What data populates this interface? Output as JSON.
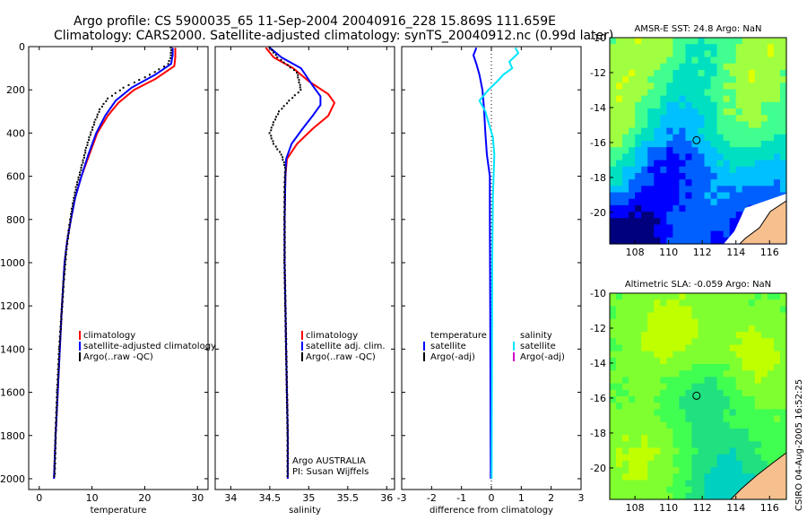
{
  "header": {
    "line1": "Argo profile: CS 5900035_65 11-Sep-2004 20040916_228 15.869S 111.659E",
    "line2": "Climatology: CARS2000. Satellite-adjusted climatology: synTS_20040912.nc (0.99d later)"
  },
  "stamp": "CSIRO 04-Aug-2005 16:52:25",
  "colors": {
    "climatology": "#ff0000",
    "satellite": "#0000ff",
    "argo": "#000000",
    "salinity_satellite": "#00e5ff",
    "salinity_argo": "#cc00cc",
    "land": "#f6c08e",
    "marker": "#000000"
  },
  "chart_data": [
    {
      "type": "line",
      "id": "temperature-profile",
      "xlabel": "temperature",
      "ylabel": "",
      "xlim": [
        -2,
        32
      ],
      "ylim": [
        2050,
        0
      ],
      "xticks": [
        0,
        10,
        20,
        30
      ],
      "yticks": [
        0,
        200,
        400,
        600,
        800,
        1000,
        1200,
        1400,
        1600,
        1800,
        2000
      ],
      "legend": {
        "position": "center-right",
        "entries": [
          "climatology",
          "satellite-adjusted climatology",
          "Argo(..raw -QC)"
        ]
      },
      "series": [
        {
          "name": "climatology",
          "style": "line",
          "color": "#ff0000",
          "points": [
            [
              25.8,
              5
            ],
            [
              25.8,
              50
            ],
            [
              25.6,
              90
            ],
            [
              22,
              150
            ],
            [
              18,
              200
            ],
            [
              15,
              260
            ],
            [
              13,
              320
            ],
            [
              11,
              400
            ],
            [
              9.5,
              500
            ],
            [
              8,
              600
            ],
            [
              6.8,
              700
            ],
            [
              6,
              800
            ],
            [
              5.3,
              900
            ],
            [
              4.8,
              1000
            ],
            [
              4.3,
              1200
            ],
            [
              3.9,
              1400
            ],
            [
              3.5,
              1600
            ],
            [
              3.1,
              1800
            ],
            [
              2.8,
              2000
            ]
          ]
        },
        {
          "name": "satellite-adjusted climatology",
          "style": "line",
          "color": "#0000ff",
          "points": [
            [
              25.3,
              5
            ],
            [
              25.3,
              40
            ],
            [
              25,
              80
            ],
            [
              22,
              130
            ],
            [
              17.5,
              190
            ],
            [
              14.5,
              250
            ],
            [
              12.5,
              320
            ],
            [
              10.8,
              400
            ],
            [
              9.3,
              500
            ],
            [
              8,
              600
            ],
            [
              6.8,
              700
            ],
            [
              6,
              800
            ],
            [
              5.3,
              900
            ],
            [
              4.8,
              1000
            ],
            [
              4.3,
              1200
            ],
            [
              3.9,
              1400
            ],
            [
              3.5,
              1600
            ],
            [
              3.1,
              1800
            ],
            [
              2.8,
              2000
            ]
          ]
        },
        {
          "name": "Argo(..raw -QC)",
          "style": "dots",
          "color": "#000000",
          "points": [
            [
              25,
              5
            ],
            [
              25,
              40
            ],
            [
              24.5,
              80
            ],
            [
              21,
              130
            ],
            [
              16,
              190
            ],
            [
              13,
              240
            ],
            [
              11.5,
              290
            ],
            [
              10.5,
              350
            ],
            [
              9.5,
              420
            ],
            [
              8.8,
              480
            ],
            [
              8,
              560
            ],
            [
              7,
              650
            ],
            [
              6.2,
              750
            ],
            [
              5.6,
              850
            ],
            [
              5.1,
              950
            ],
            [
              4.6,
              1100
            ],
            [
              4.2,
              1250
            ],
            [
              3.8,
              1400
            ],
            [
              3.4,
              1600
            ],
            [
              3.1,
              1800
            ],
            [
              2.9,
              2000
            ]
          ]
        }
      ]
    },
    {
      "type": "line",
      "id": "salinity-profile",
      "xlabel": "salinity",
      "ylabel": "",
      "xlim": [
        33.8,
        36.1
      ],
      "ylim": [
        2050,
        0
      ],
      "xticks": [
        34,
        34.5,
        35,
        35.5,
        36
      ],
      "yticks": [
        0,
        200,
        400,
        600,
        800,
        1000,
        1200,
        1400,
        1600,
        1800,
        2000
      ],
      "legend": {
        "position": "center-right",
        "entries": [
          "climatology",
          "satellite adj. clim.",
          "Argo(..raw -QC)"
        ]
      },
      "annotation": [
        "Argo AUSTRALIA",
        "PI: Susan Wijffels"
      ],
      "series": [
        {
          "name": "climatology",
          "style": "line",
          "color": "#ff0000",
          "points": [
            [
              34.45,
              5
            ],
            [
              34.55,
              50
            ],
            [
              34.8,
              100
            ],
            [
              35.0,
              160
            ],
            [
              35.25,
              220
            ],
            [
              35.33,
              260
            ],
            [
              35.25,
              320
            ],
            [
              35.05,
              380
            ],
            [
              34.85,
              450
            ],
            [
              34.72,
              520
            ],
            [
              34.7,
              600
            ],
            [
              34.69,
              800
            ],
            [
              34.69,
              1000
            ],
            [
              34.7,
              1200
            ],
            [
              34.71,
              1400
            ],
            [
              34.72,
              1600
            ],
            [
              34.73,
              1800
            ],
            [
              34.73,
              2000
            ]
          ]
        },
        {
          "name": "satellite adj. clim.",
          "style": "line",
          "color": "#0000ff",
          "points": [
            [
              34.5,
              5
            ],
            [
              34.65,
              50
            ],
            [
              34.9,
              100
            ],
            [
              35.05,
              180
            ],
            [
              35.15,
              230
            ],
            [
              35.15,
              270
            ],
            [
              35.05,
              320
            ],
            [
              34.92,
              380
            ],
            [
              34.78,
              450
            ],
            [
              34.71,
              520
            ],
            [
              34.7,
              600
            ],
            [
              34.69,
              800
            ],
            [
              34.69,
              1000
            ],
            [
              34.7,
              1200
            ],
            [
              34.71,
              1400
            ],
            [
              34.72,
              1600
            ],
            [
              34.73,
              1800
            ],
            [
              34.73,
              2000
            ]
          ]
        },
        {
          "name": "Argo(..raw -QC)",
          "style": "dots",
          "color": "#000000",
          "points": [
            [
              34.5,
              5
            ],
            [
              34.6,
              50
            ],
            [
              34.85,
              120
            ],
            [
              34.9,
              200
            ],
            [
              34.75,
              250
            ],
            [
              34.62,
              300
            ],
            [
              34.55,
              350
            ],
            [
              34.5,
              400
            ],
            [
              34.55,
              450
            ],
            [
              34.65,
              500
            ],
            [
              34.7,
              560
            ],
            [
              34.69,
              650
            ],
            [
              34.69,
              800
            ],
            [
              34.69,
              1000
            ],
            [
              34.7,
              1200
            ],
            [
              34.71,
              1400
            ],
            [
              34.72,
              1600
            ],
            [
              34.73,
              1800
            ],
            [
              34.73,
              2000
            ]
          ]
        }
      ]
    },
    {
      "type": "line",
      "id": "difference-profile",
      "xlabel": "difference from climatology",
      "ylabel": "",
      "xlim": [
        -3,
        3
      ],
      "ylim": [
        2050,
        0
      ],
      "xticks": [
        -3,
        -2,
        -1,
        0,
        1,
        2,
        3
      ],
      "yticks": [
        0,
        200,
        400,
        600,
        800,
        1000,
        1200,
        1400,
        1600,
        1800,
        2000
      ],
      "zero_line": true,
      "legend": {
        "position": "center",
        "entries": [
          "temperature",
          "satellite",
          "Argo(-adj)",
          "salinity",
          "satellite",
          "Argo(-adj)"
        ]
      },
      "series": [
        {
          "name": "temperature satellite",
          "style": "line",
          "color": "#0000ff",
          "points": [
            [
              -0.5,
              5
            ],
            [
              -0.6,
              40
            ],
            [
              -0.5,
              80
            ],
            [
              -0.4,
              130
            ],
            [
              -0.3,
              200
            ],
            [
              -0.25,
              280
            ],
            [
              -0.2,
              400
            ],
            [
              -0.15,
              500
            ],
            [
              -0.05,
              600
            ],
            [
              -0.05,
              800
            ],
            [
              -0.04,
              1200
            ],
            [
              -0.03,
              1600
            ],
            [
              -0.02,
              2000
            ]
          ]
        },
        {
          "name": "salinity satellite",
          "style": "line",
          "color": "#00e5ff",
          "points": [
            [
              0.8,
              5
            ],
            [
              0.9,
              30
            ],
            [
              0.6,
              70
            ],
            [
              0.7,
              100
            ],
            [
              0.4,
              130
            ],
            [
              0.2,
              160
            ],
            [
              -0.1,
              200
            ],
            [
              -0.4,
              250
            ],
            [
              -0.2,
              300
            ],
            [
              -0.1,
              350
            ],
            [
              0.05,
              420
            ],
            [
              0.1,
              500
            ],
            [
              0.05,
              700
            ],
            [
              0.03,
              1000
            ],
            [
              0.02,
              1400
            ],
            [
              0.01,
              2000
            ]
          ]
        }
      ]
    }
  ],
  "maps": [
    {
      "id": "sst-map",
      "title": "AMSR-E SST: 24.8 Argo: NaN",
      "xlim": [
        106.5,
        117
      ],
      "ylim": [
        -21.8,
        -10
      ],
      "xticks": [
        108,
        110,
        112,
        114,
        116
      ],
      "yticks": [
        -10,
        -12,
        -14,
        -16,
        -18,
        -20
      ],
      "marker": {
        "lon": 111.659,
        "lat": -15.869
      },
      "palette": [
        "#00007f",
        "#0000ff",
        "#0060ff",
        "#00c0ff",
        "#00e0c0",
        "#40ff90",
        "#a0ff40",
        "#e0ff00"
      ]
    },
    {
      "id": "sla-map",
      "title": "Altimetric SLA: -0.059 Argo: NaN",
      "xlim": [
        106.5,
        117
      ],
      "ylim": [
        -21.8,
        -10
      ],
      "xticks": [
        108,
        110,
        112,
        114,
        116
      ],
      "yticks": [
        -10,
        -12,
        -14,
        -16,
        -18,
        -20
      ],
      "marker": {
        "lon": 111.659,
        "lat": -15.869
      },
      "palette": [
        "#00a0ff",
        "#00d0c0",
        "#20e080",
        "#40ff50",
        "#80ff30",
        "#c0ff00",
        "#f0f000"
      ]
    }
  ]
}
